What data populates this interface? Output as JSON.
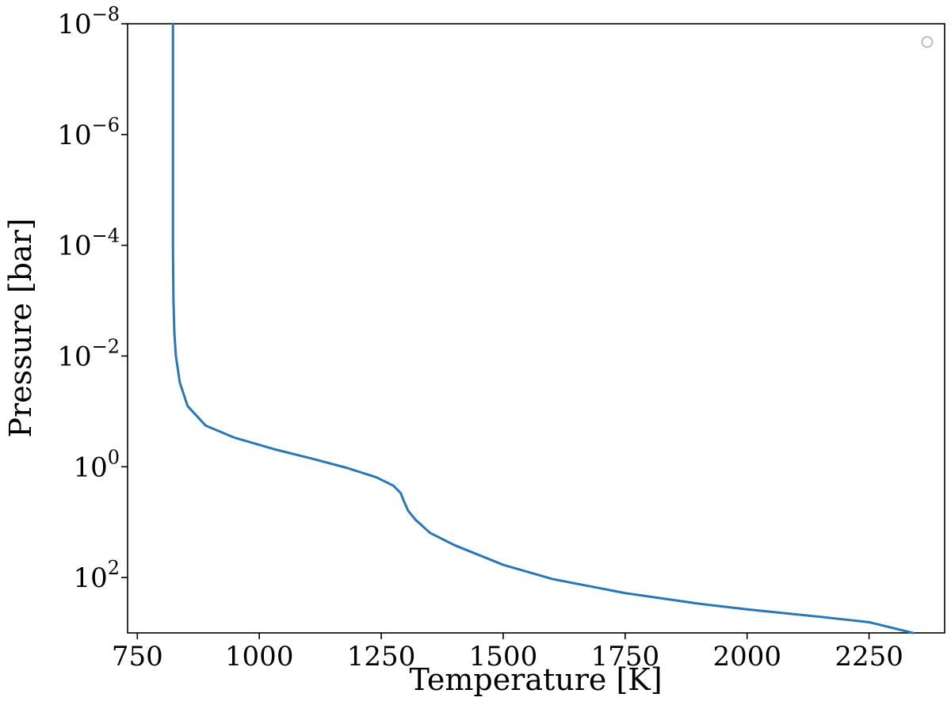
{
  "chart_data": {
    "type": "line",
    "xlabel": "Temperature [K]",
    "ylabel": "Pressure [bar]",
    "xlim": [
      730,
      2405
    ],
    "ylim_log10": [
      3,
      -8
    ],
    "y_scale": "log",
    "y_inverted": true,
    "grid": false,
    "legend_placement": "top-right",
    "x_ticks": [
      {
        "value": 750,
        "label": "750"
      },
      {
        "value": 1000,
        "label": "1000"
      },
      {
        "value": 1250,
        "label": "1250"
      },
      {
        "value": 1500,
        "label": "1500"
      },
      {
        "value": 1750,
        "label": "1750"
      },
      {
        "value": 2000,
        "label": "2000"
      },
      {
        "value": 2250,
        "label": "2250"
      }
    ],
    "y_ticks": [
      {
        "log10": -8,
        "base": "10",
        "exp": "−8"
      },
      {
        "log10": -6,
        "base": "10",
        "exp": "−6"
      },
      {
        "log10": -4,
        "base": "10",
        "exp": "−4"
      },
      {
        "log10": -2,
        "base": "10",
        "exp": "−2"
      },
      {
        "log10": 0,
        "base": "10",
        "exp": "0"
      },
      {
        "log10": 2,
        "base": "10",
        "exp": "2"
      }
    ],
    "series": [
      {
        "color": "#2a77b6",
        "points": [
          {
            "T": 823,
            "P": 1e-08
          },
          {
            "T": 823,
            "P": 1e-06
          },
          {
            "T": 823,
            "P": 0.0001
          },
          {
            "T": 824,
            "P": 0.001
          },
          {
            "T": 826,
            "P": 0.004
          },
          {
            "T": 829,
            "P": 0.01
          },
          {
            "T": 837,
            "P": 0.03
          },
          {
            "T": 853,
            "P": 0.08
          },
          {
            "T": 890,
            "P": 0.18
          },
          {
            "T": 950,
            "P": 0.3
          },
          {
            "T": 1030,
            "P": 0.48
          },
          {
            "T": 1110,
            "P": 0.72
          },
          {
            "T": 1180,
            "P": 1.05
          },
          {
            "T": 1240,
            "P": 1.55
          },
          {
            "T": 1275,
            "P": 2.2
          },
          {
            "T": 1290,
            "P": 3.0
          },
          {
            "T": 1297,
            "P": 4.3
          },
          {
            "T": 1305,
            "P": 6.2
          },
          {
            "T": 1320,
            "P": 9.0
          },
          {
            "T": 1350,
            "P": 15.6
          },
          {
            "T": 1400,
            "P": 26
          },
          {
            "T": 1500,
            "P": 59
          },
          {
            "T": 1600,
            "P": 106
          },
          {
            "T": 1750,
            "P": 191
          },
          {
            "T": 1900,
            "P": 296
          },
          {
            "T": 2000,
            "P": 376
          },
          {
            "T": 2150,
            "P": 512
          },
          {
            "T": 2250,
            "P": 640
          },
          {
            "T": 2340,
            "P": 1000
          }
        ]
      }
    ]
  }
}
